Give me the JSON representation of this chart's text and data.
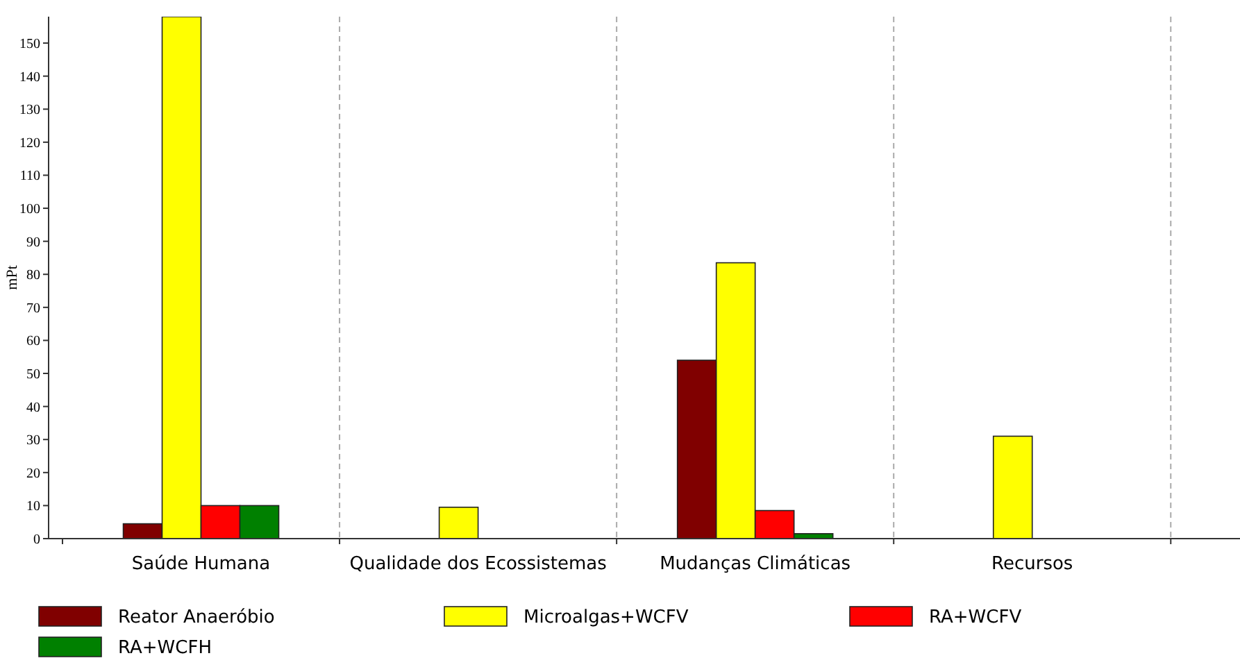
{
  "chart_data": {
    "type": "bar",
    "ylabel": "mPt",
    "categories": [
      "Saúde Humana",
      "Qualidade dos Ecossistemas",
      "Mudanças Climáticas",
      "Recursos"
    ],
    "series": [
      {
        "name": "Reator Anaeróbio",
        "color": "#800000",
        "values": [
          4.5,
          0,
          54,
          0
        ]
      },
      {
        "name": "Microalgas+WCFV",
        "color": "#ffff00",
        "values": [
          158,
          9.5,
          83.5,
          31
        ]
      },
      {
        "name": "RA+WCFV",
        "color": "#ff0000",
        "values": [
          10,
          0,
          8.5,
          0
        ]
      },
      {
        "name": "RA+WCFH",
        "color": "#008000",
        "values": [
          10,
          0,
          1.5,
          0
        ]
      }
    ],
    "ylim": [
      0,
      158
    ],
    "yticks": [
      0,
      10,
      20,
      30,
      40,
      50,
      60,
      70,
      80,
      90,
      100,
      110,
      120,
      130,
      140,
      150
    ],
    "grid": "x",
    "legend": "bottom"
  }
}
